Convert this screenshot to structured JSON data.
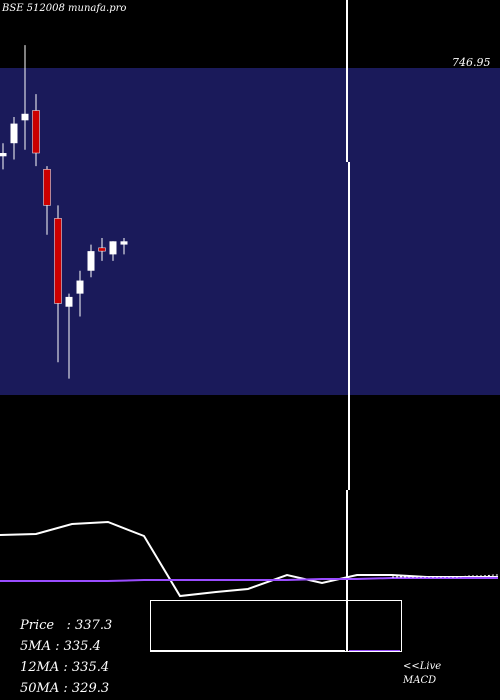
{
  "header": {
    "symbol_label": "BSE 512008 munafa.pro"
  },
  "price_tag": "746.95",
  "stats": {
    "price_label": "Price",
    "price_value": "337.3",
    "ma5_label": "5MA",
    "ma5_value": "335.4",
    "ma12_label": "12MA",
    "ma12_value": "335.4",
    "ma50_label": "50MA",
    "ma50_value": "329.3"
  },
  "live": {
    "line1": "<<Live",
    "line2": "MACD"
  },
  "colors": {
    "panel": "#1a1a5a",
    "up": "#ffffff",
    "down": "#cc0000",
    "ma": "#ffffff",
    "macd": "#9a4dff"
  },
  "chart_data": {
    "type": "candlestick",
    "price_axis": {
      "min": 290,
      "max": 390
    },
    "candles": [
      {
        "o": 363,
        "h": 367,
        "l": 359,
        "c": 364
      },
      {
        "o": 367,
        "h": 375,
        "l": 362,
        "c": 373
      },
      {
        "o": 374,
        "h": 397,
        "l": 365,
        "c": 376
      },
      {
        "o": 377,
        "h": 382,
        "l": 360,
        "c": 364
      },
      {
        "o": 359,
        "h": 360,
        "l": 339,
        "c": 348
      },
      {
        "o": 344,
        "h": 348,
        "l": 300,
        "c": 318
      },
      {
        "o": 317,
        "h": 321,
        "l": 295,
        "c": 320
      },
      {
        "o": 321,
        "h": 328,
        "l": 314,
        "c": 325
      },
      {
        "o": 328,
        "h": 336,
        "l": 326,
        "c": 334
      },
      {
        "o": 335,
        "h": 338,
        "l": 331,
        "c": 334
      },
      {
        "o": 333,
        "h": 337,
        "l": 331,
        "c": 337
      },
      {
        "o": 336,
        "h": 338,
        "l": 333,
        "c": 337
      }
    ],
    "ma_line": [
      535,
      534,
      524,
      522,
      536,
      596,
      592,
      589,
      575,
      583,
      575,
      575,
      577,
      577,
      577
    ],
    "macd_line": [
      581,
      581,
      581,
      581,
      580,
      580,
      580,
      580,
      580,
      579,
      579,
      578,
      578,
      578,
      578
    ],
    "signal_line": [
      577,
      577,
      577,
      577,
      577,
      577,
      576,
      576,
      575,
      575
    ],
    "spike_x": 347
  }
}
